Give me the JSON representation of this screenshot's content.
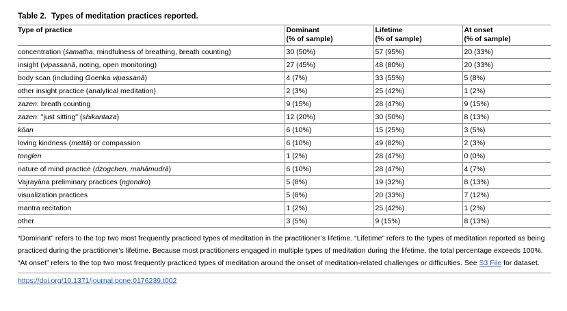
{
  "caption": {
    "label": "Table 2.",
    "title": "Types of meditation practices reported."
  },
  "columns": [
    {
      "line1": "Type of practice",
      "line2": ""
    },
    {
      "line1": "Dominant",
      "line2": "(% of sample)"
    },
    {
      "line1": "Lifetime",
      "line2": "(% of sample)"
    },
    {
      "line1": "At onset",
      "line2": "(% of sample)"
    }
  ],
  "rows": [
    {
      "practice": [
        {
          "t": "concentration ("
        },
        {
          "t": "śamatha",
          "i": true
        },
        {
          "t": ", mindfulness of breathing, breath counting)"
        }
      ],
      "dominant": "30 (50%)",
      "lifetime": "57 (95%)",
      "onset": "20 (33%)"
    },
    {
      "practice": [
        {
          "t": "insight ("
        },
        {
          "t": "vipassanā",
          "i": true
        },
        {
          "t": ", noting, open monitoring)"
        }
      ],
      "dominant": "27 (45%)",
      "lifetime": "48 (80%)",
      "onset": "20 (33%)"
    },
    {
      "practice": [
        {
          "t": "body scan (including Goenka "
        },
        {
          "t": "vipassanā",
          "i": true
        },
        {
          "t": ")"
        }
      ],
      "dominant": "4 (7%)",
      "lifetime": "33 (55%)",
      "onset": "5 (8%)"
    },
    {
      "practice": [
        {
          "t": "other insight practice (analytical meditation)"
        }
      ],
      "dominant": "2 (3%)",
      "lifetime": "25 (42%)",
      "onset": "1 (2%)"
    },
    {
      "practice": [
        {
          "t": "zazen",
          "i": true
        },
        {
          "t": ": breath counting"
        }
      ],
      "dominant": "9 (15%)",
      "lifetime": "28 (47%)",
      "onset": "9 (15%)"
    },
    {
      "practice": [
        {
          "t": "zazen",
          "i": true
        },
        {
          "t": ": \"just sitting\" ("
        },
        {
          "t": "shikantaza",
          "i": true
        },
        {
          "t": ")"
        }
      ],
      "dominant": "12 (20%)",
      "lifetime": "30 (50%)",
      "onset": "8 (13%)"
    },
    {
      "practice": [
        {
          "t": "kōan",
          "i": true
        }
      ],
      "dominant": "6 (10%)",
      "lifetime": "15 (25%)",
      "onset": "3 (5%)"
    },
    {
      "practice": [
        {
          "t": "loving kindness ("
        },
        {
          "t": "mettā",
          "i": true
        },
        {
          "t": ") or compassion"
        }
      ],
      "dominant": "6 (10%)",
      "lifetime": "49 (82%)",
      "onset": "2 (3%)"
    },
    {
      "practice": [
        {
          "t": "tonglen",
          "i": true
        }
      ],
      "dominant": "1 (2%)",
      "lifetime": "28 (47%)",
      "onset": "0 (0%)"
    },
    {
      "practice": [
        {
          "t": "nature of mind practice ("
        },
        {
          "t": "dzogchen, mahāmudrā",
          "i": true
        },
        {
          "t": ")"
        }
      ],
      "dominant": "6 (10%)",
      "lifetime": "28 (47%)",
      "onset": "4 (7%)"
    },
    {
      "practice": [
        {
          "t": "Vajrayāna preliminary practices ("
        },
        {
          "t": "ngondro",
          "i": true
        },
        {
          "t": ")"
        }
      ],
      "dominant": "5 (8%)",
      "lifetime": "19 (32%)",
      "onset": "8 (13%)"
    },
    {
      "practice": [
        {
          "t": "visualization practices"
        }
      ],
      "dominant": "5 (8%)",
      "lifetime": "20 (33%)",
      "onset": "7 (12%)"
    },
    {
      "practice": [
        {
          "t": "mantra recitation"
        }
      ],
      "dominant": "1 (2%)",
      "lifetime": "25 (42%)",
      "onset": "1 (2%)"
    },
    {
      "practice": [
        {
          "t": "other"
        }
      ],
      "dominant": "3 (5%)",
      "lifetime": "9 (15%)",
      "onset": "8 (13%)"
    }
  ],
  "footnote": {
    "before_link": "“Dominant” refers to the top two most frequently practiced types of meditation in the practitioner’s lifetime. “Lifetime” refers to the types of meditation reported as being practiced during the practitioner’s lifetime. Because most practitioners engaged in multiple types of meditation during the lifetime, the total percentage exceeds 100%. “At onset” refers to the top two most frequently practiced types of meditation around the onset of meditation-related challenges or difficulties. See ",
    "link_text": "S3 File",
    "after_link": " for dataset."
  },
  "doi": "https://doi.org/10.1371/journal.pone.0176239.t002",
  "colors": {
    "link": "#2a5db0",
    "rule": "#8a8a8a"
  }
}
